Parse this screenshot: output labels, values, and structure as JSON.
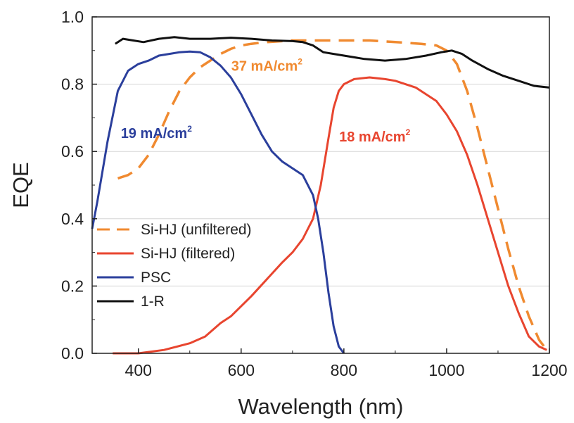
{
  "chart_data": {
    "type": "line",
    "xlabel": "Wavelength (nm)",
    "ylabel": "EQE",
    "xlim": [
      310,
      1200
    ],
    "ylim": [
      0,
      1.0
    ],
    "xticks": [
      "400",
      "600",
      "800",
      "1000",
      "1200"
    ],
    "yticks": [
      "0.0",
      "0.2",
      "0.4",
      "0.6",
      "0.8",
      "1.0"
    ],
    "grid": true,
    "legend": "bottom-left",
    "series": [
      {
        "name": "Si-HJ (unfiltered)",
        "color": "#f08a30",
        "style": "dashed",
        "x": [
          360,
          380,
          400,
          420,
          440,
          460,
          480,
          500,
          520,
          540,
          560,
          580,
          600,
          620,
          650,
          700,
          750,
          800,
          850,
          900,
          950,
          980,
          1000,
          1020,
          1040,
          1060,
          1080,
          1100,
          1120,
          1140,
          1160,
          1180,
          1195
        ],
        "y": [
          0.52,
          0.53,
          0.55,
          0.59,
          0.65,
          0.72,
          0.78,
          0.82,
          0.85,
          0.87,
          0.89,
          0.905,
          0.915,
          0.92,
          0.925,
          0.93,
          0.93,
          0.93,
          0.93,
          0.925,
          0.92,
          0.915,
          0.9,
          0.86,
          0.78,
          0.67,
          0.55,
          0.43,
          0.31,
          0.2,
          0.11,
          0.04,
          0.01
        ]
      },
      {
        "name": "Si-HJ (filtered)",
        "color": "#e8452f",
        "style": "solid",
        "x": [
          350,
          400,
          450,
          500,
          530,
          560,
          580,
          600,
          620,
          650,
          680,
          700,
          720,
          740,
          755,
          770,
          780,
          790,
          800,
          820,
          850,
          880,
          900,
          940,
          980,
          1000,
          1020,
          1040,
          1060,
          1080,
          1100,
          1120,
          1140,
          1160,
          1180,
          1195
        ],
        "y": [
          0.0,
          0.0,
          0.01,
          0.03,
          0.05,
          0.09,
          0.11,
          0.14,
          0.17,
          0.22,
          0.27,
          0.3,
          0.34,
          0.4,
          0.5,
          0.64,
          0.73,
          0.78,
          0.8,
          0.815,
          0.82,
          0.815,
          0.81,
          0.79,
          0.75,
          0.71,
          0.66,
          0.59,
          0.5,
          0.4,
          0.3,
          0.2,
          0.12,
          0.05,
          0.02,
          0.01
        ]
      },
      {
        "name": "PSC",
        "color": "#2b3f9c",
        "style": "solid",
        "x": [
          310,
          320,
          340,
          360,
          380,
          400,
          420,
          440,
          460,
          480,
          500,
          520,
          540,
          560,
          580,
          600,
          620,
          640,
          660,
          680,
          700,
          720,
          740,
          750,
          760,
          770,
          780,
          790,
          800
        ],
        "y": [
          0.37,
          0.45,
          0.63,
          0.78,
          0.84,
          0.86,
          0.87,
          0.885,
          0.89,
          0.895,
          0.897,
          0.895,
          0.88,
          0.855,
          0.82,
          0.77,
          0.71,
          0.65,
          0.6,
          0.57,
          0.55,
          0.53,
          0.47,
          0.4,
          0.3,
          0.18,
          0.08,
          0.02,
          0.0
        ]
      },
      {
        "name": "1-R",
        "color": "#111111",
        "style": "solid",
        "x": [
          355,
          370,
          390,
          410,
          440,
          470,
          500,
          540,
          580,
          620,
          660,
          700,
          720,
          740,
          760,
          780,
          800,
          840,
          880,
          920,
          960,
          990,
          1010,
          1030,
          1050,
          1080,
          1110,
          1140,
          1170,
          1200
        ],
        "y": [
          0.92,
          0.935,
          0.93,
          0.925,
          0.935,
          0.94,
          0.935,
          0.935,
          0.938,
          0.935,
          0.93,
          0.928,
          0.925,
          0.915,
          0.895,
          0.89,
          0.885,
          0.875,
          0.87,
          0.875,
          0.885,
          0.895,
          0.9,
          0.89,
          0.87,
          0.845,
          0.825,
          0.81,
          0.795,
          0.79
        ]
      }
    ],
    "annotations": [
      {
        "text": "37 mA/cm",
        "sup": "2",
        "color": "#f08a30",
        "x": 650,
        "y": 0.84
      },
      {
        "text": "19 mA/cm",
        "sup": "2",
        "color": "#2b3f9c",
        "x": 435,
        "y": 0.64
      },
      {
        "text": "18 mA/cm",
        "sup": "2",
        "color": "#e8452f",
        "x": 860,
        "y": 0.63
      }
    ]
  }
}
